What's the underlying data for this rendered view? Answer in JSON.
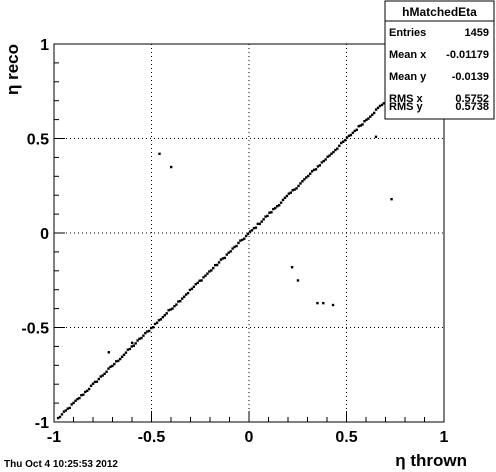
{
  "timestamp": "Thu Oct  4 10:25:53 2012",
  "stats_box": {
    "title": "hMatchedEta",
    "rows": [
      {
        "label": "Entries",
        "value": "1459"
      },
      {
        "label": "Mean x",
        "value": "-0.01179"
      },
      {
        "label": "Mean y",
        "value": "-0.0139"
      },
      {
        "label": "RMS x",
        "value": "0.5752"
      },
      {
        "label": "RMS y",
        "value": "0.5738"
      }
    ]
  },
  "chart_data": {
    "type": "scatter",
    "title": "",
    "xlabel": "η thrown",
    "ylabel": "η reco",
    "xlim": [
      -1,
      1
    ],
    "ylim": [
      -1,
      1
    ],
    "grid": true,
    "x_ticks": [
      -1,
      -0.5,
      0,
      0.5,
      1
    ],
    "y_ticks": [
      -1,
      -0.5,
      0,
      0.5,
      1
    ],
    "x_tick_labels": [
      "-1",
      "-0.5",
      "0",
      "0.5",
      "1"
    ],
    "y_tick_labels": [
      "-1",
      "-0.5",
      "0",
      "0.5",
      "1"
    ],
    "diagonal_band": {
      "from": -0.98,
      "to": 0.8,
      "relation": "y = x",
      "points": 180
    },
    "outliers": [
      {
        "x": -0.46,
        "y": 0.42
      },
      {
        "x": -0.4,
        "y": 0.35
      },
      {
        "x": 0.73,
        "y": 0.18
      },
      {
        "x": 0.65,
        "y": 0.51
      },
      {
        "x": 0.22,
        "y": -0.18
      },
      {
        "x": 0.25,
        "y": -0.25
      },
      {
        "x": 0.35,
        "y": -0.37
      },
      {
        "x": 0.38,
        "y": -0.37
      },
      {
        "x": 0.43,
        "y": -0.38
      },
      {
        "x": -0.72,
        "y": -0.63
      },
      {
        "x": -0.6,
        "y": -0.58
      }
    ]
  }
}
